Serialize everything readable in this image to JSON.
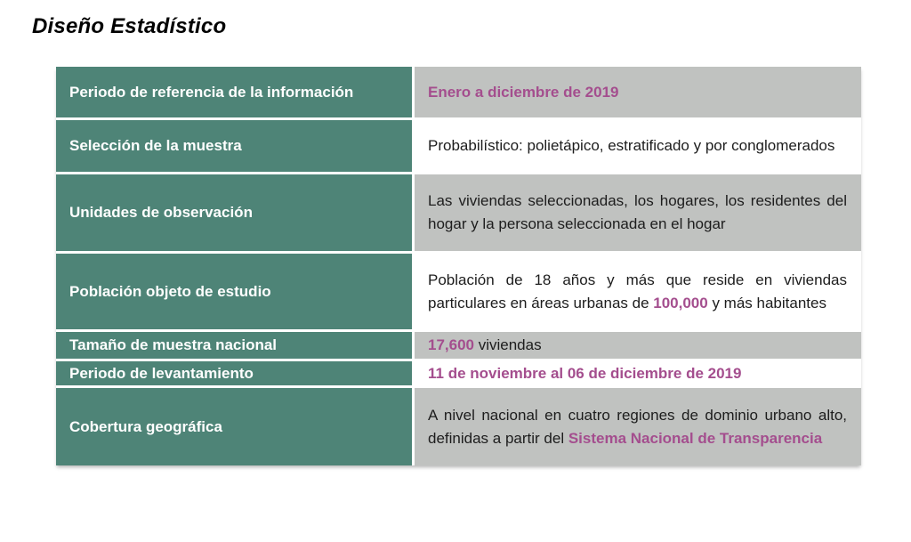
{
  "page": {
    "title": "Diseño Estadístico"
  },
  "colors": {
    "teal": "#4e8477",
    "gray": "#c0c2c0",
    "magenta": "#a44e8e",
    "ink": "#1d1d1d",
    "paper": "#ffffff"
  },
  "table": {
    "rows": [
      {
        "label": "Periodo de referencia de la información",
        "shade": "gray",
        "segments": [
          {
            "text": "Enero a diciembre de 2019",
            "highlight": true
          }
        ]
      },
      {
        "label": "Selección de la muestra",
        "shade": "white",
        "segments": [
          {
            "text": "Probabilístico: polietápico, estratificado y por conglomerados",
            "highlight": false
          }
        ]
      },
      {
        "label": "Unidades de observación",
        "shade": "gray",
        "segments": [
          {
            "text": "Las viviendas seleccionadas, los hogares, los residentes del hogar y la persona seleccionada en el hogar",
            "highlight": false
          }
        ]
      },
      {
        "label": "Población objeto de estudio",
        "shade": "white",
        "segments": [
          {
            "text": "Población de 18 años y más que reside en viviendas particulares en áreas urbanas de ",
            "highlight": false
          },
          {
            "text": "100,000",
            "highlight": true
          },
          {
            "text": " y más habitantes",
            "highlight": false
          }
        ]
      },
      {
        "label": "Tamaño de muestra nacional",
        "shade": "gray",
        "segments": [
          {
            "text": "17,600",
            "highlight": true
          },
          {
            "text": " viviendas",
            "highlight": false
          }
        ]
      },
      {
        "label": "Periodo de levantamiento",
        "shade": "white",
        "segments": [
          {
            "text": "11 de noviembre al 06 de diciembre de 2019",
            "highlight": true
          }
        ]
      },
      {
        "label": "Cobertura geográfica",
        "shade": "gray",
        "segments": [
          {
            "text": "A nivel nacional en cuatro regiones de dominio urbano alto, definidas a partir del ",
            "highlight": false
          },
          {
            "text": "Sistema Nacional de Transparencia",
            "highlight": true
          }
        ]
      }
    ]
  }
}
